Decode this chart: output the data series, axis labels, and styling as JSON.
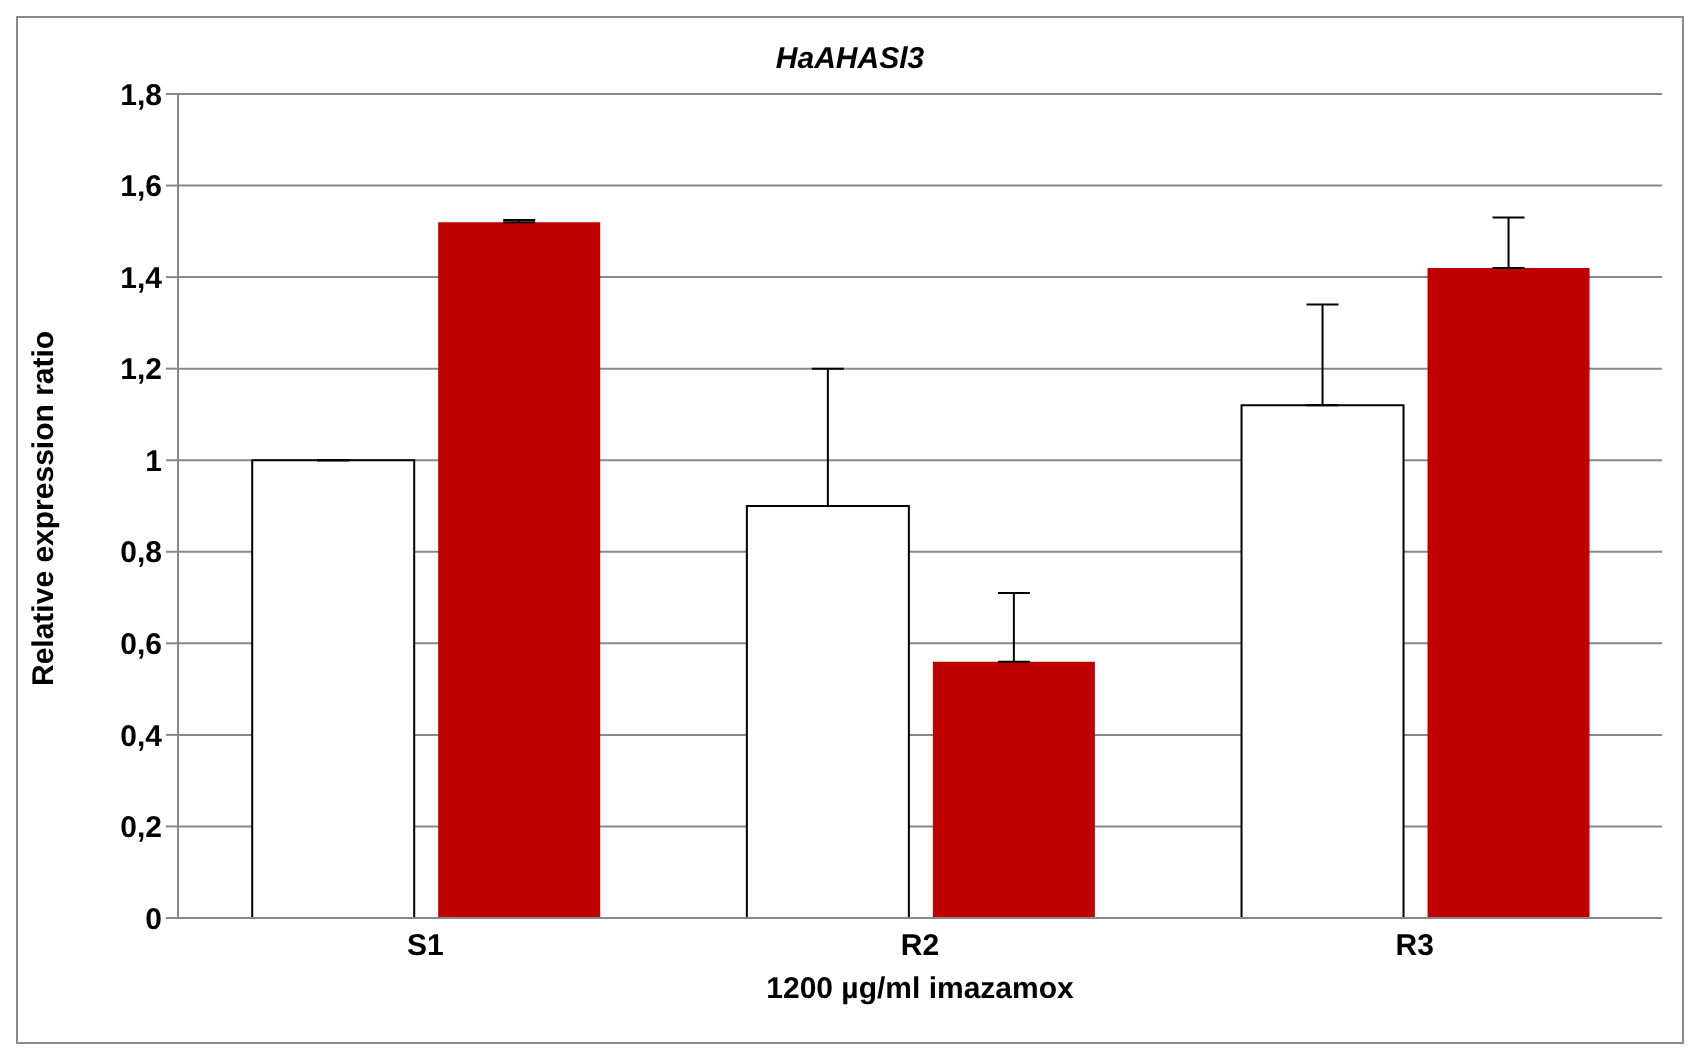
{
  "chart_data": {
    "type": "bar",
    "title": "HaAHASl3",
    "xlabel": "1200 µg/ml imazamox",
    "ylabel": "Relative expression ratio",
    "categories": [
      "S1",
      "R2",
      "R3"
    ],
    "series": [
      {
        "color": "#ffffff",
        "values": [
          1.0,
          0.9,
          1.12
        ],
        "errors": [
          null,
          [
            0.9,
            1.2
          ],
          [
            1.12,
            1.34
          ]
        ]
      },
      {
        "color": "#c00000",
        "values": [
          1.52,
          0.56,
          1.42
        ],
        "errors": [
          [
            1.52,
            1.525
          ],
          [
            0.56,
            0.71
          ],
          [
            1.42,
            1.53
          ]
        ]
      }
    ],
    "ylim": [
      0,
      1.8
    ],
    "yticks": [
      0,
      {
        "value": 0.2,
        "label": "0,2"
      },
      {
        "value": 0.4,
        "label": "0,4"
      },
      {
        "value": 0.6,
        "label": "0,6"
      },
      {
        "value": 0.8,
        "label": "0,8"
      },
      1,
      {
        "value": 1.2,
        "label": "1,2"
      },
      {
        "value": 1.4,
        "label": "1,4"
      },
      {
        "value": 1.6,
        "label": "1,6"
      },
      {
        "value": 1.8,
        "label": "1,8"
      }
    ],
    "grid": "y",
    "legend": false
  }
}
